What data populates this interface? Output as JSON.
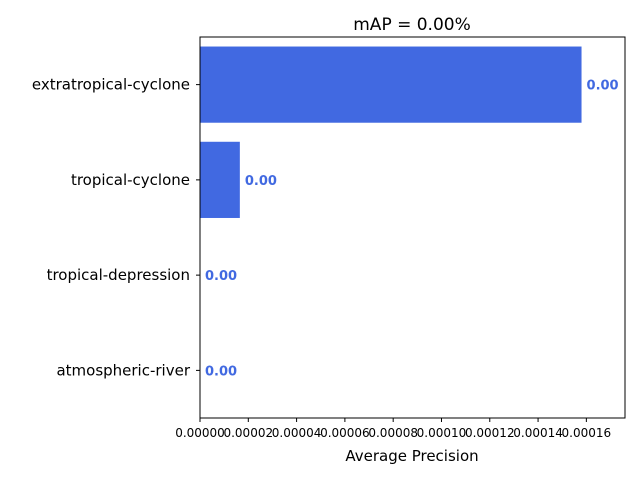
{
  "chart_data": {
    "type": "bar",
    "orientation": "horizontal",
    "title": "mAP = 0.00%",
    "xlabel": "Average Precision",
    "ylabel": "",
    "categories": [
      "extratropical-cyclone",
      "tropical-cyclone",
      "tropical-depression",
      "atmospheric-river"
    ],
    "values": [
      0.000158,
      1.65e-05,
      0.0,
      0.0
    ],
    "data_labels": [
      "0.00",
      "0.00",
      "0.00",
      "0.00"
    ],
    "xlim": [
      0,
      0.000176
    ],
    "xticks": [
      0,
      2e-05,
      4e-05,
      6e-05,
      8e-05,
      0.0001,
      0.00012,
      0.00014,
      0.00016
    ],
    "xtick_labels": [
      "0.00000",
      "0.00002",
      "0.00004",
      "0.00006",
      "0.00008",
      "0.00010",
      "0.00012",
      "0.00014",
      "0.00016"
    ],
    "bar_color": "#4169e1",
    "label_color": "#4169e1",
    "grid": false,
    "legend": "none"
  }
}
